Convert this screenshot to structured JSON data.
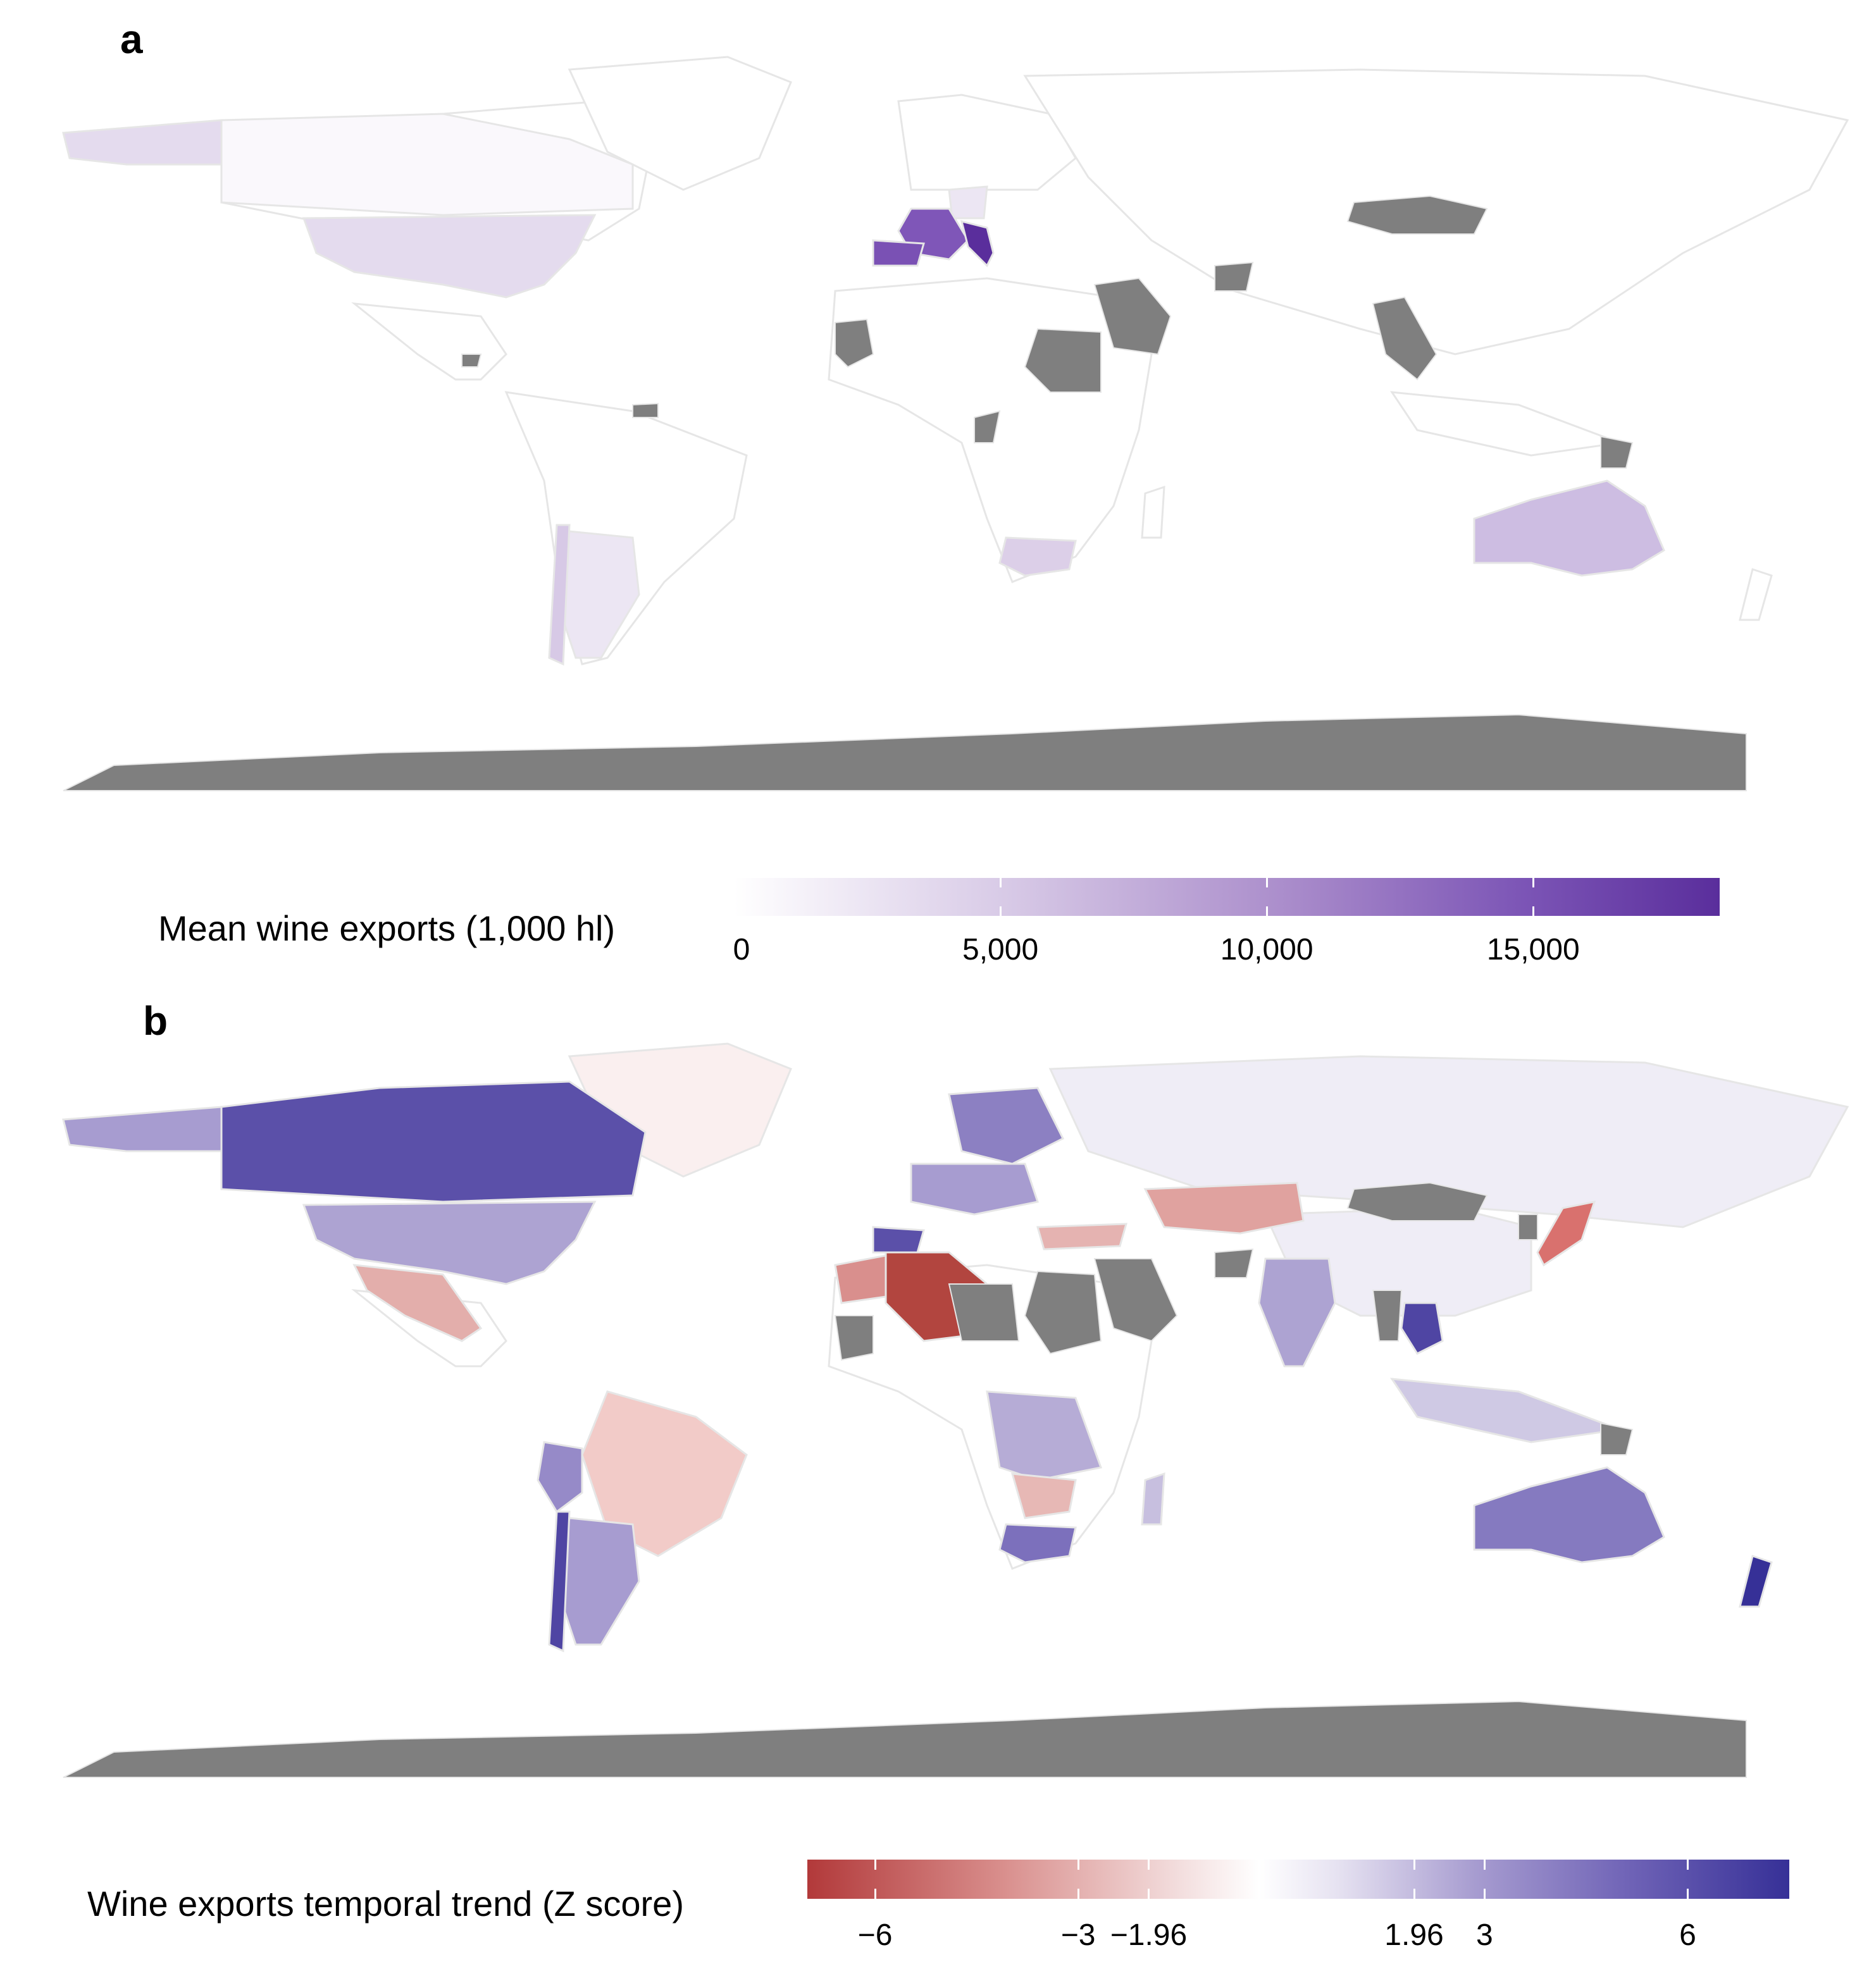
{
  "panels": [
    {
      "letter": "a",
      "legend": {
        "title": "Mean wine exports (1,000 hl)",
        "min": 0,
        "max": 18500,
        "ticks": [
          {
            "value": 0,
            "label": "0"
          },
          {
            "value": 5000,
            "label": "5,000"
          },
          {
            "value": 10000,
            "label": "10,000"
          },
          {
            "value": 15000,
            "label": "15,000"
          }
        ],
        "colors": [
          "#ffffff",
          "#d7c9e6",
          "#ac8fcc",
          "#7c55b6",
          "#5a2e9c"
        ]
      },
      "no_data_color": "#7f7f7f",
      "regions": [
        {
          "name": "France",
          "level": "very high"
        },
        {
          "name": "Italy",
          "level": "very high"
        },
        {
          "name": "Spain",
          "level": "high"
        },
        {
          "name": "Australia",
          "level": "moderate"
        },
        {
          "name": "United States",
          "level": "low"
        },
        {
          "name": "Chile",
          "level": "low"
        },
        {
          "name": "South Africa",
          "level": "low"
        },
        {
          "name": "Antarctica",
          "level": "no data"
        }
      ]
    },
    {
      "letter": "b",
      "legend": {
        "title": "Wine exports temporal trend (Z score)",
        "min": -7,
        "max": 7.5,
        "ticks": [
          {
            "value": -6,
            "label": "−6"
          },
          {
            "value": -3,
            "label": "−3"
          },
          {
            "value": -1.96,
            "label": "−1.96"
          },
          {
            "value": 1.96,
            "label": "1.96"
          },
          {
            "value": 3,
            "label": "3"
          },
          {
            "value": 6,
            "label": "6"
          }
        ],
        "colors": [
          "#b2393a",
          "#d98f8d",
          "#f3dede",
          "#ffffff",
          "#e6e2f1",
          "#a79cd0",
          "#6e62b6",
          "#363097"
        ]
      },
      "no_data_color": "#7f7f7f",
      "regions": [
        {
          "name": "Canada",
          "level": "strong positive"
        },
        {
          "name": "New Zealand",
          "level": "strong positive"
        },
        {
          "name": "Thailand",
          "level": "strong positive"
        },
        {
          "name": "Chile",
          "level": "strong positive"
        },
        {
          "name": "Australia",
          "level": "positive"
        },
        {
          "name": "United States",
          "level": "positive"
        },
        {
          "name": "South Africa",
          "level": "positive"
        },
        {
          "name": "Argentina",
          "level": "positive"
        },
        {
          "name": "Algeria",
          "level": "strong negative"
        },
        {
          "name": "Kazakhstan",
          "level": "negative"
        },
        {
          "name": "Mexico",
          "level": "negative"
        },
        {
          "name": "Brazil",
          "level": "negative"
        },
        {
          "name": "Japan",
          "level": "negative"
        },
        {
          "name": "Russia",
          "level": "neutral"
        },
        {
          "name": "China",
          "level": "neutral"
        },
        {
          "name": "Antarctica",
          "level": "no data"
        }
      ]
    }
  ]
}
